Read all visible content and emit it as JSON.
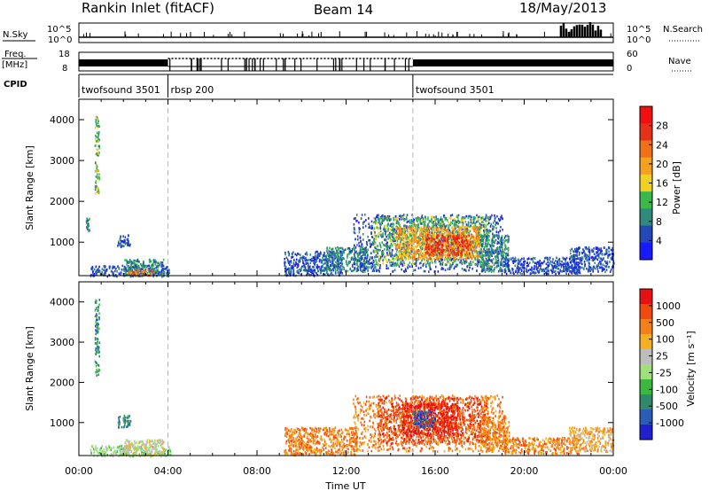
{
  "header": {
    "station": "Rankin Inlet (fitACF)",
    "beam": "Beam 14",
    "date": "18/May/2013"
  },
  "status_panels": {
    "nsky_label": "N.Sky",
    "nsky_ticks": [
      "10^5",
      "10^0"
    ],
    "nsearch_label": "N.Search",
    "nsearch_ticks": [
      "10^5",
      "10^0"
    ],
    "freq_label_top": "Freq.",
    "freq_label_bottom": "[MHz]",
    "freq_ticks": [
      "18",
      "8"
    ],
    "nave_label": "Nave",
    "nave_ticks": [
      "60",
      "0"
    ],
    "cpid_label": "CPID",
    "cpid_segments": [
      {
        "name": "twofsound 3501",
        "start_hour": 0,
        "end_hour": 4
      },
      {
        "name": "rbsp 200",
        "start_hour": 4,
        "end_hour": 15
      },
      {
        "name": "twofsound 3501",
        "start_hour": 15,
        "end_hour": 24
      }
    ]
  },
  "chart_data": [
    {
      "type": "heatmap",
      "name": "power",
      "xlabel": "Time UT",
      "ylabel": "Slant Range [km]",
      "x_ticks": [
        "00:00",
        "04:00",
        "08:00",
        "12:00",
        "16:00",
        "20:00",
        "00:00"
      ],
      "x_tick_hours": [
        0,
        4,
        8,
        12,
        16,
        20,
        24
      ],
      "xlim_hours": [
        0,
        24
      ],
      "y_ticks": [
        1000,
        2000,
        3000,
        4000
      ],
      "ylim": [
        180,
        4500
      ],
      "markers_hours": [
        4,
        15
      ],
      "colorbar": {
        "label": "Power [dB]",
        "ticks": [
          "4",
          "8",
          "12",
          "16",
          "20",
          "24",
          "28"
        ],
        "colors": [
          "#1a1aff",
          "#2448b8",
          "#2f8a7c",
          "#39b84c",
          "#f0d020",
          "#f4a020",
          "#f07018",
          "#e63018",
          "#f01010"
        ]
      },
      "clusters": [
        {
          "t0": 0.3,
          "t1": 0.45,
          "r0": 1300,
          "r1": 1700,
          "level": 2
        },
        {
          "t0": 0.7,
          "t1": 0.9,
          "r0": 2200,
          "r1": 4100,
          "level": 3
        },
        {
          "t0": 0.5,
          "t1": 4.1,
          "r0": 180,
          "r1": 450,
          "level": 1
        },
        {
          "t0": 2.0,
          "t1": 3.8,
          "r0": 200,
          "r1": 600,
          "level": 2
        },
        {
          "t0": 2.2,
          "t1": 3.4,
          "r0": 200,
          "r1": 350,
          "level": 6
        },
        {
          "t0": 1.7,
          "t1": 2.3,
          "r0": 900,
          "r1": 1200,
          "level": 1
        },
        {
          "t0": 9.2,
          "t1": 11.8,
          "r0": 200,
          "r1": 800,
          "level": 1
        },
        {
          "t0": 11.0,
          "t1": 13.0,
          "r0": 300,
          "r1": 900,
          "level": 2
        },
        {
          "t0": 12.3,
          "t1": 19.0,
          "r0": 300,
          "r1": 1700,
          "level": 1
        },
        {
          "t0": 13.2,
          "t1": 18.4,
          "r0": 450,
          "r1": 1650,
          "level": 3
        },
        {
          "t0": 14.2,
          "t1": 18.0,
          "r0": 600,
          "r1": 1400,
          "level": 5
        },
        {
          "t0": 15.5,
          "t1": 17.6,
          "r0": 700,
          "r1": 1200,
          "level": 7
        },
        {
          "t0": 18.0,
          "t1": 19.3,
          "r0": 300,
          "r1": 1200,
          "level": 2
        },
        {
          "t0": 19.0,
          "t1": 22.5,
          "r0": 250,
          "r1": 650,
          "level": 1
        },
        {
          "t0": 22.0,
          "t1": 24.0,
          "r0": 300,
          "r1": 900,
          "level": 1
        }
      ]
    },
    {
      "type": "heatmap",
      "name": "velocity",
      "xlabel": "Time UT",
      "ylabel": "Slant Range [km]",
      "x_ticks": [
        "00:00",
        "04:00",
        "08:00",
        "12:00",
        "16:00",
        "20:00",
        "00:00"
      ],
      "x_tick_hours": [
        0,
        4,
        8,
        12,
        16,
        20,
        24
      ],
      "xlim_hours": [
        0,
        24
      ],
      "y_ticks": [
        1000,
        2000,
        3000,
        4000
      ],
      "ylim": [
        180,
        4500
      ],
      "markers_hours": [
        4,
        15
      ],
      "colorbar": {
        "label": "Velocity [m s⁻¹]",
        "ticks": [
          "1000",
          "500",
          "100",
          "25",
          "-25",
          "-100",
          "-500",
          "-1000"
        ],
        "colors": [
          "#2020d0",
          "#2a5cb8",
          "#2f8a6c",
          "#3cb840",
          "#9ee07a",
          "#bdbdbd",
          "#f4b020",
          "#f48018",
          "#f04a10",
          "#e81010"
        ]
      },
      "clusters": [
        {
          "t0": 0.7,
          "t1": 0.9,
          "r0": 2200,
          "r1": 4100,
          "level": 2
        },
        {
          "t0": 0.5,
          "t1": 4.1,
          "r0": 180,
          "r1": 450,
          "level": 4
        },
        {
          "t0": 2.0,
          "t1": 3.8,
          "r0": 200,
          "r1": 600,
          "level": 5
        },
        {
          "t0": 1.7,
          "t1": 2.3,
          "r0": 900,
          "r1": 1200,
          "level": 2
        },
        {
          "t0": 9.2,
          "t1": 12.5,
          "r0": 200,
          "r1": 900,
          "level": 7
        },
        {
          "t0": 12.3,
          "t1": 19.0,
          "r0": 300,
          "r1": 1700,
          "level": 7
        },
        {
          "t0": 13.4,
          "t1": 18.4,
          "r0": 500,
          "r1": 1650,
          "level": 8
        },
        {
          "t0": 14.5,
          "t1": 17.0,
          "r0": 700,
          "r1": 1500,
          "level": 9
        },
        {
          "t0": 15.0,
          "t1": 16.0,
          "r0": 900,
          "r1": 1300,
          "level": 1
        },
        {
          "t0": 18.0,
          "t1": 19.3,
          "r0": 300,
          "r1": 1200,
          "level": 7
        },
        {
          "t0": 19.0,
          "t1": 22.5,
          "r0": 250,
          "r1": 650,
          "level": 7
        },
        {
          "t0": 22.0,
          "t1": 24.0,
          "r0": 300,
          "r1": 900,
          "level": 6
        }
      ]
    }
  ]
}
